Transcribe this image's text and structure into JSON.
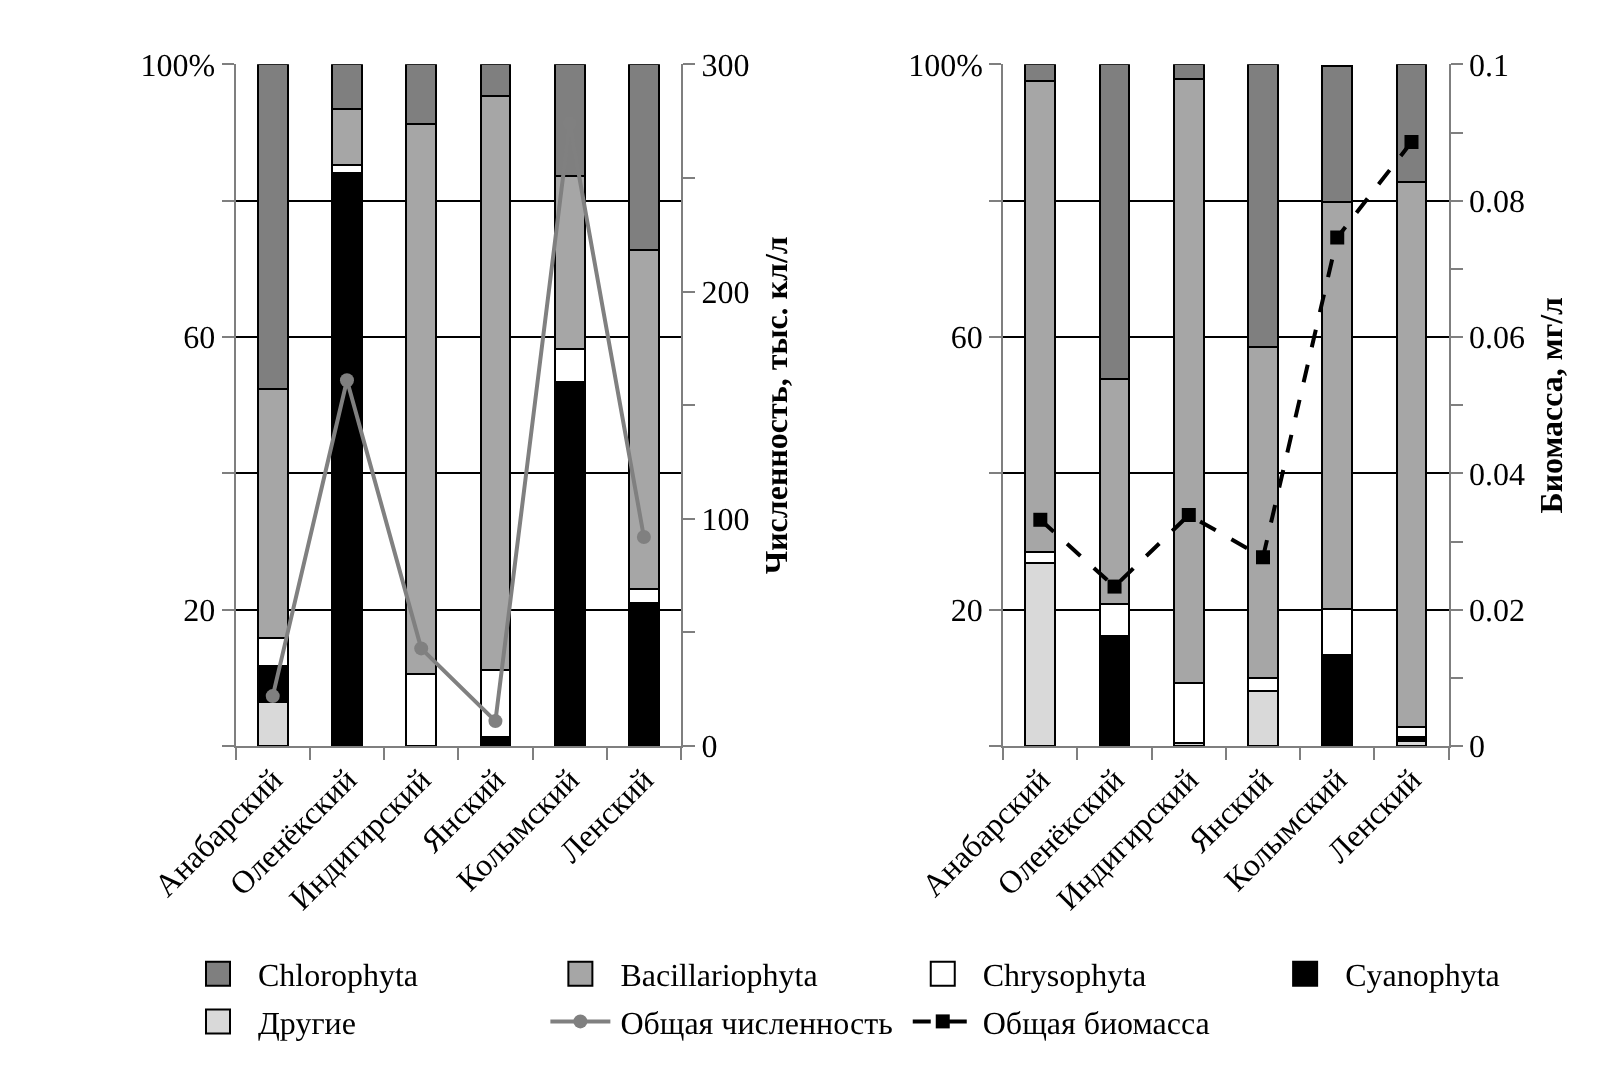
{
  "chart_data": [
    {
      "type": "bar",
      "stacked": true,
      "categories": [
        "Анабарский",
        "Оленёкский",
        "Индигирский",
        "Янский",
        "Колымский",
        "Ленский"
      ],
      "ylim": [
        0,
        100
      ],
      "yticks": [
        {
          "value": 0,
          "label": null
        },
        20,
        {
          "value": 40,
          "label": null
        },
        60,
        {
          "value": 80,
          "label": null
        },
        {
          "value": 100,
          "label": "100%"
        }
      ],
      "y2lim": [
        0,
        300
      ],
      "y2ticks": [
        0,
        {
          "value": 50,
          "label": null
        },
        100,
        {
          "value": 150,
          "label": null
        },
        200,
        {
          "value": 250,
          "label": null
        },
        300
      ],
      "y2label": "Численность, тыс. кл/л",
      "grid": "y",
      "legend": "bottom",
      "series": [
        {
          "name": "Другие",
          "color": "#d9d9d9",
          "values": [
            6.4,
            0,
            0,
            0,
            0,
            0
          ]
        },
        {
          "name": "Cyanophyta",
          "color": "#000000",
          "values": [
            5.3,
            84.1,
            0,
            1.4,
            53.4,
            21.0
          ]
        },
        {
          "name": "Chrysophyta",
          "color": "#ffffff",
          "values": [
            4.1,
            1.2,
            10.6,
            9.7,
            4.9,
            2.0
          ]
        },
        {
          "name": "Bacillariophyta",
          "color": "#a6a6a6",
          "values": [
            36.6,
            8.1,
            80.7,
            84.2,
            25.3,
            49.8
          ]
        },
        {
          "name": "Chlorophyta",
          "color": "#7f7f7f",
          "values": [
            47.6,
            6.6,
            8.7,
            4.7,
            16.4,
            27.2
          ]
        },
        {
          "name": "Общая численность",
          "type": "line",
          "axis": "y2",
          "color": "#808080",
          "marker": "circle",
          "line_style": "solid",
          "values": [
            22,
            161,
            43,
            11,
            274,
            92
          ]
        }
      ]
    },
    {
      "type": "bar",
      "stacked": true,
      "categories": [
        "Анабарский",
        "Оленёкский",
        "Индигирский",
        "Янский",
        "Колымский",
        "Ленский"
      ],
      "ylim": [
        0,
        100
      ],
      "yticks": [
        {
          "value": 0,
          "label": null
        },
        20,
        {
          "value": 40,
          "label": null
        },
        60,
        {
          "value": 80,
          "label": null
        },
        {
          "value": 100,
          "label": "100%"
        }
      ],
      "y2lim": [
        0,
        0.1
      ],
      "y2ticks": [
        0,
        {
          "value": 0.01,
          "label": null
        },
        0.02,
        {
          "value": 0.03,
          "label": null
        },
        0.04,
        {
          "value": 0.05,
          "label": null
        },
        0.06,
        {
          "value": 0.07,
          "label": null
        },
        0.08,
        {
          "value": 0.09,
          "label": null
        },
        0.1
      ],
      "y2label": "Биомасса, мг/л",
      "grid": "y",
      "legend": "bottom",
      "series": [
        {
          "color": "#d9d9d9",
          "values": [
            26.8,
            0,
            0.4,
            8.1,
            null,
            0.8
          ]
        },
        {
          "color": "#000000",
          "values": [
            0,
            16.1,
            0,
            0,
            13.3,
            0.6
          ]
        },
        {
          "color": "#ffffff",
          "values": [
            1.6,
            4.8,
            8.9,
            1.9,
            6.8,
            1.4
          ]
        },
        {
          "color": "#a6a6a6",
          "values": [
            69.2,
            32.9,
            88.5,
            48.6,
            59.7,
            79.9
          ]
        },
        {
          "color": "#7f7f7f",
          "values": [
            2.4,
            46.2,
            2.2,
            41.4,
            19.9,
            17.3
          ]
        },
        {
          "name": "Общая биомасса",
          "type": "line",
          "axis": "y2",
          "color": "#000000",
          "marker": "square",
          "line_style": "dashed",
          "values": [
            0.0332,
            0.0234,
            0.0339,
            0.0277,
            0.0746,
            0.0886
          ]
        }
      ]
    }
  ]
}
